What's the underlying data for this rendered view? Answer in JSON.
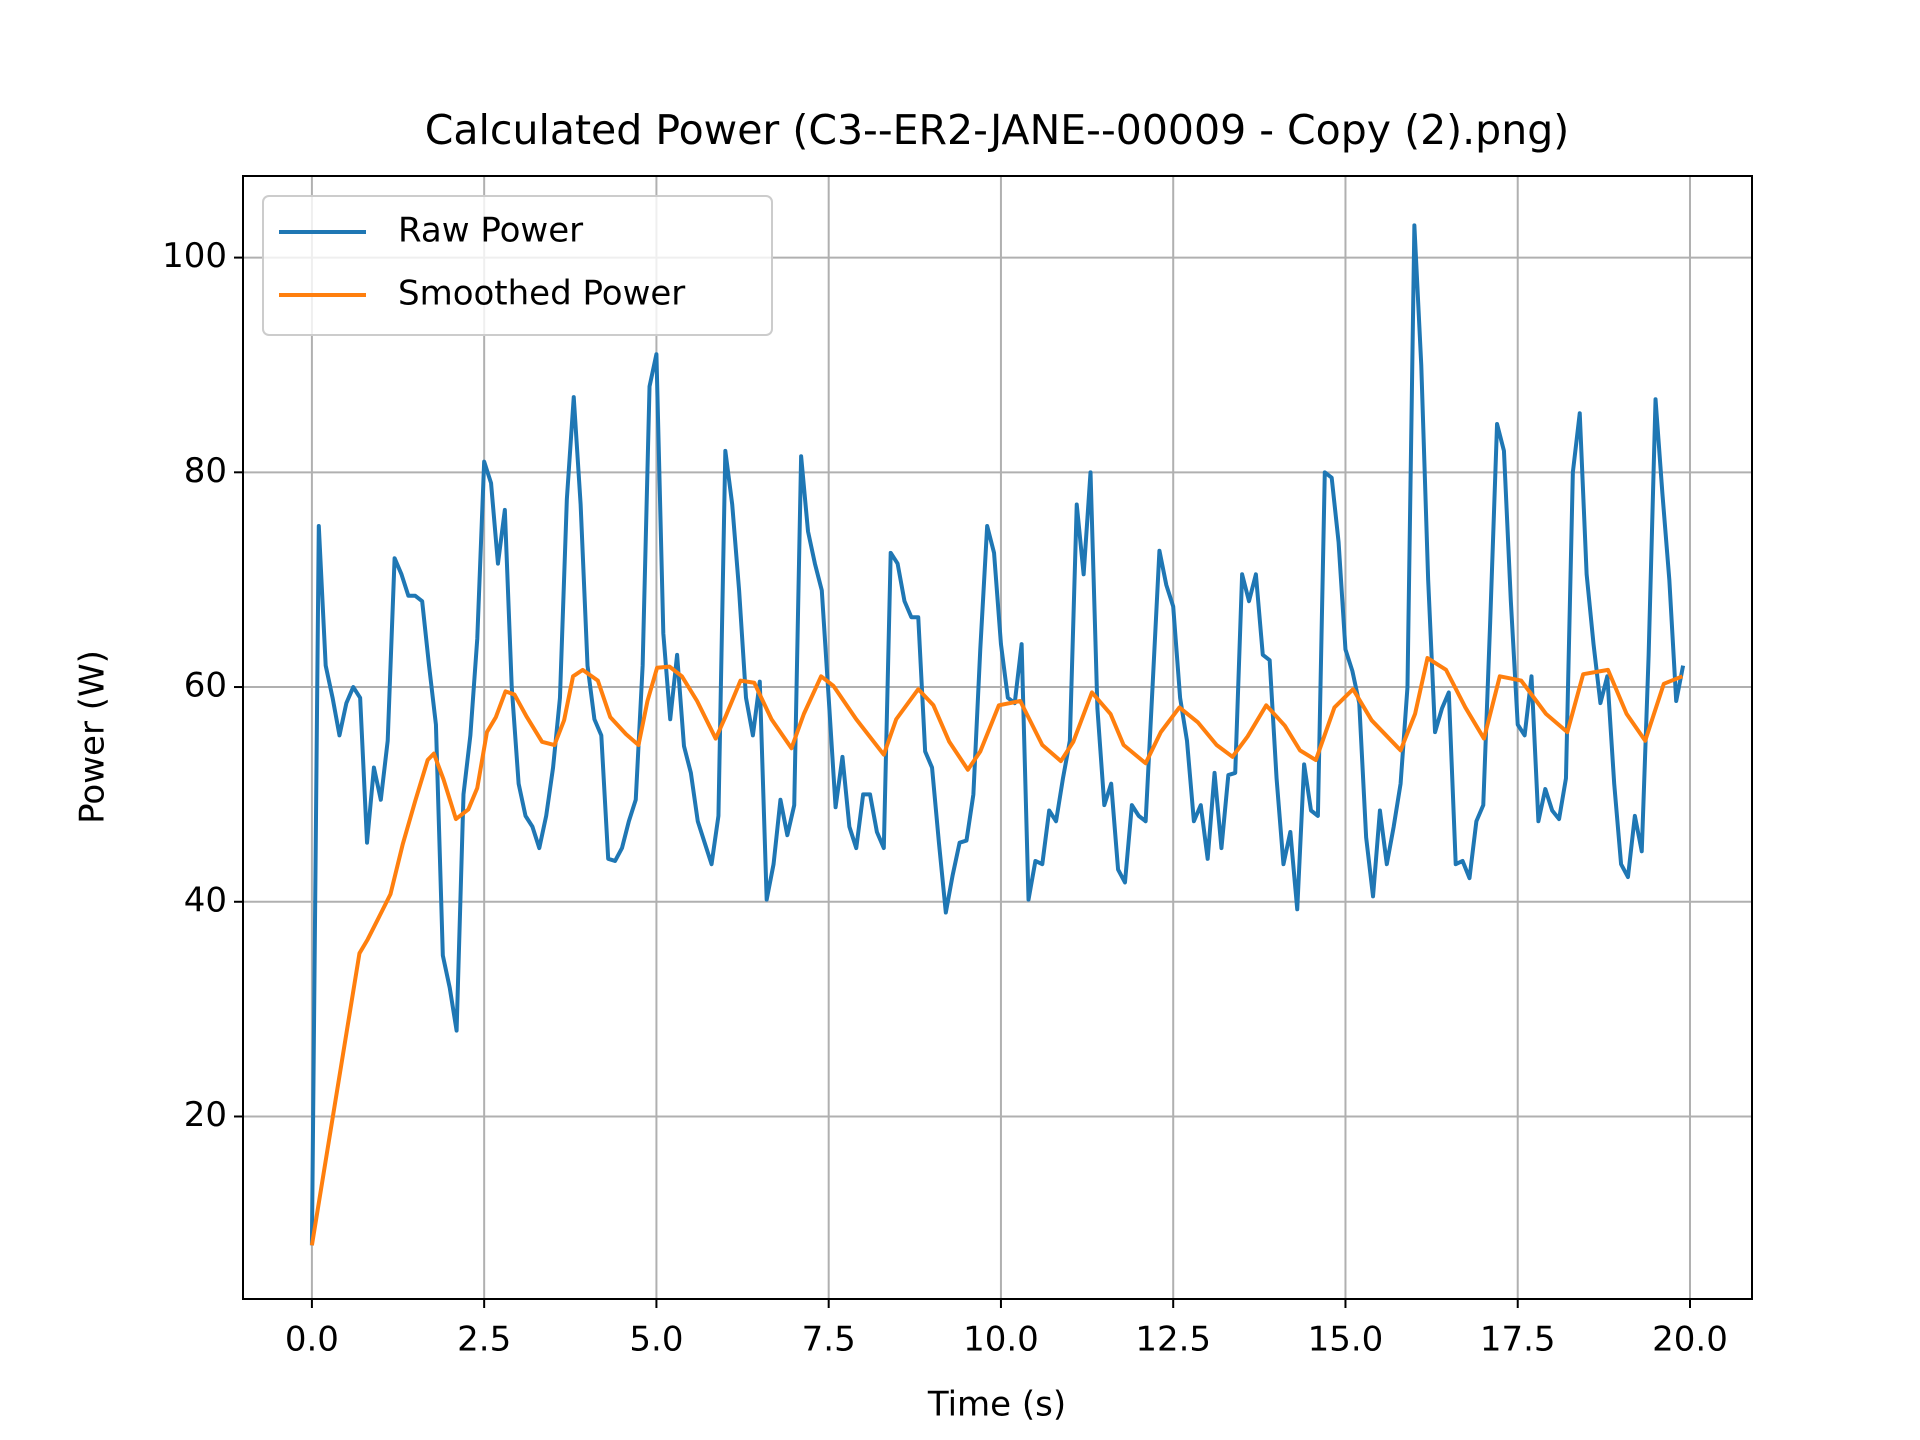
{
  "chart_data": {
    "type": "line",
    "title": "Calculated Power (C3--ER2-JANE--00009 - Copy (2).png)",
    "x_label": "Time (s)",
    "y_label": "Power (W)",
    "xlim": [
      -1.0,
      20.9
    ],
    "ylim": [
      3.0,
      107.6
    ],
    "xticks": [
      {
        "value": 0,
        "label": "0.0"
      },
      {
        "value": 2.5,
        "label": "2.5"
      },
      {
        "value": 5,
        "label": "5.0"
      },
      {
        "value": 7.5,
        "label": "7.5"
      },
      {
        "value": 10,
        "label": "10.0"
      },
      {
        "value": 12.5,
        "label": "12.5"
      },
      {
        "value": 15,
        "label": "15.0"
      },
      {
        "value": 17.5,
        "label": "17.5"
      },
      {
        "value": 20,
        "label": "20.0"
      }
    ],
    "yticks": [
      20,
      40,
      60,
      80,
      100
    ],
    "grid": true,
    "legend": "upper left",
    "series": [
      {
        "name": "Raw Power",
        "color": "#1f77b4",
        "x": [
          0,
          0.1,
          0.2,
          0.3,
          0.4,
          0.5,
          0.6,
          0.7,
          0.8,
          0.9,
          1.0,
          1.1,
          1.2,
          1.3,
          1.4,
          1.5,
          1.6,
          1.7,
          1.8,
          1.9,
          2.0,
          2.1,
          2.2,
          2.3,
          2.4,
          2.5,
          2.6,
          2.7,
          2.8,
          2.9,
          3.0,
          3.1,
          3.2,
          3.3,
          3.4,
          3.5,
          3.6,
          3.7,
          3.8,
          3.9,
          4.0,
          4.1,
          4.2,
          4.3,
          4.4,
          4.5,
          4.6,
          4.7,
          4.8,
          4.9,
          5.0,
          5.1,
          5.2,
          5.3,
          5.4,
          5.5,
          5.6,
          5.7,
          5.8,
          5.9,
          6.0,
          6.1,
          6.2,
          6.3,
          6.4,
          6.5,
          6.6,
          6.7,
          6.8,
          6.9,
          7.0,
          7.1,
          7.2,
          7.3,
          7.4,
          7.5,
          7.6,
          7.7,
          7.8,
          7.9,
          8.0,
          8.1,
          8.2,
          8.3,
          8.4,
          8.5,
          8.6,
          8.7,
          8.8,
          8.9,
          9.0,
          9.1,
          9.2,
          9.3,
          9.4,
          9.5,
          9.6,
          9.7,
          9.8,
          9.9,
          10.0,
          10.1,
          10.2,
          10.3,
          10.4,
          10.5,
          10.6,
          10.7,
          10.8,
          10.9,
          11.0,
          11.1,
          11.2,
          11.3,
          11.4,
          11.5,
          11.6,
          11.7,
          11.8,
          11.9,
          12.0,
          12.1,
          12.2,
          12.3,
          12.4,
          12.5,
          12.6,
          12.7,
          12.8,
          12.9,
          13.0,
          13.1,
          13.2,
          13.3,
          13.4,
          13.5,
          13.6,
          13.7,
          13.8,
          13.9,
          14.0,
          14.1,
          14.2,
          14.3,
          14.4,
          14.5,
          14.6,
          14.7,
          14.8,
          14.9,
          15.0,
          15.1,
          15.2,
          15.3,
          15.4,
          15.5,
          15.6,
          15.7,
          15.8,
          15.9,
          16.0,
          16.1,
          16.2,
          16.3,
          16.4,
          16.5,
          16.6,
          16.7,
          16.8,
          16.9,
          17.0,
          17.1,
          17.2,
          17.3,
          17.4,
          17.5,
          17.6,
          17.7,
          17.8,
          17.9,
          18.0,
          18.1,
          18.2,
          18.3,
          18.4,
          18.5,
          18.6,
          18.7,
          18.8,
          18.9,
          19.0,
          19.1,
          19.2,
          19.3,
          19.4,
          19.5,
          19.6,
          19.7,
          19.8,
          19.9
        ],
        "values": [
          8,
          75,
          62,
          59,
          55.5,
          58.5,
          60,
          59,
          45.5,
          52.5,
          49.5,
          55,
          72,
          70.5,
          68.5,
          68.5,
          68,
          62,
          56.5,
          35,
          32,
          28,
          50,
          55.5,
          64.5,
          81,
          79,
          71.5,
          76.5,
          60,
          51,
          48,
          47,
          45,
          48,
          52.5,
          59,
          77.5,
          87,
          77,
          62,
          57,
          55.5,
          44,
          43.8,
          45,
          47.5,
          49.5,
          62,
          88,
          91,
          65,
          57,
          63,
          54.5,
          52,
          47.5,
          45.5,
          43.5,
          48,
          82,
          77,
          69,
          59,
          55.5,
          60.5,
          40.2,
          43.5,
          49.5,
          46.2,
          49,
          81.5,
          74.5,
          71.5,
          69,
          59,
          48.8,
          53.5,
          47,
          45,
          50,
          50,
          46.5,
          45,
          72.5,
          71.5,
          68,
          66.5,
          66.5,
          54,
          52.5,
          45.5,
          39,
          42.5,
          45.5,
          45.7,
          50,
          63.5,
          75,
          72.5,
          64,
          59,
          58.5,
          64,
          40.2,
          43.8,
          43.5,
          48.5,
          47.5,
          51.5,
          55,
          77,
          70.5,
          80,
          58,
          49,
          51,
          43,
          41.8,
          49,
          48,
          47.5,
          60,
          72.7,
          69.5,
          67.5,
          59,
          55,
          47.5,
          49,
          44,
          52,
          45,
          51.8,
          52,
          70.5,
          68,
          70.5,
          63,
          62.5,
          51.5,
          43.5,
          46.5,
          39.3,
          52.8,
          48.5,
          48,
          80,
          79.5,
          73.5,
          63.5,
          61.5,
          58.5,
          46,
          40.5,
          48.5,
          43.5,
          47,
          51,
          60,
          103,
          90,
          70,
          55.8,
          58,
          59.5,
          43.5,
          43.8,
          42.2,
          47.5,
          49,
          66,
          84.5,
          82,
          68,
          56.5,
          55.5,
          61,
          47.5,
          50.5,
          48.5,
          47.7,
          51.5,
          80,
          85.5,
          70.5,
          64,
          58.5,
          61,
          51,
          43.5,
          42.3,
          48,
          44.7,
          63,
          86.8,
          78,
          70,
          58.7,
          62
        ]
      },
      {
        "name": "Smoothed Power",
        "color": "#ff7f0e",
        "x": [
          0,
          0.69,
          0.81,
          0.96,
          1.14,
          1.32,
          1.5,
          1.68,
          1.77,
          1.91,
          2.09,
          2.27,
          2.4,
          2.54,
          2.67,
          2.81,
          2.94,
          3.12,
          3.34,
          3.52,
          3.66,
          3.79,
          3.93,
          4.15,
          4.33,
          4.56,
          4.74,
          4.87,
          5.01,
          5.19,
          5.37,
          5.59,
          5.86,
          6.0,
          6.22,
          6.42,
          6.67,
          6.96,
          7.14,
          7.39,
          7.57,
          7.9,
          8.3,
          8.48,
          8.8,
          9.02,
          9.25,
          9.52,
          9.7,
          9.97,
          10.28,
          10.6,
          10.87,
          11.05,
          11.32,
          11.59,
          11.78,
          12.1,
          12.32,
          12.59,
          12.86,
          13.13,
          13.36,
          13.58,
          13.85,
          14.12,
          14.34,
          14.57,
          14.84,
          15.11,
          15.38,
          15.8,
          16.01,
          16.19,
          16.46,
          16.74,
          17.01,
          17.24,
          17.55,
          17.91,
          18.22,
          18.45,
          18.81,
          19.08,
          19.35,
          19.62,
          19.89
        ],
        "values": [
          8,
          35.2,
          36.5,
          38.4,
          40.7,
          45.4,
          49.4,
          53.2,
          53.8,
          51.4,
          47.7,
          48.6,
          50.6,
          55.8,
          57.2,
          59.6,
          59.3,
          57.2,
          54.9,
          54.6,
          56.9,
          61,
          61.6,
          60.6,
          57.2,
          55.6,
          54.6,
          58.7,
          61.8,
          61.9,
          61,
          58.7,
          55.2,
          57.2,
          60.6,
          60.4,
          57,
          54.3,
          57.5,
          61,
          60.1,
          57,
          53.7,
          57,
          59.8,
          58.3,
          54.9,
          52.3,
          54,
          58.3,
          58.7,
          54.6,
          53.1,
          54.9,
          59.5,
          57.5,
          54.6,
          52.9,
          55.8,
          58.1,
          56.7,
          54.6,
          53.5,
          55.4,
          58.3,
          56.4,
          54.1,
          53.2,
          58.1,
          59.8,
          56.9,
          54.1,
          57.5,
          62.7,
          61.6,
          58.1,
          55.2,
          61,
          60.6,
          57.5,
          55.8,
          61.2,
          61.6,
          57.5,
          55,
          60.3,
          61
        ]
      }
    ]
  }
}
